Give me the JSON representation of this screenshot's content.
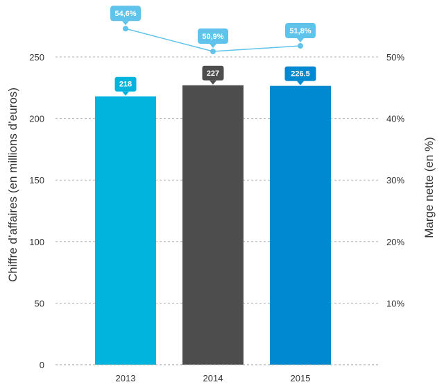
{
  "chart_data": {
    "type": "bar",
    "categories": [
      "2013",
      "2014",
      "2015"
    ],
    "series": [
      {
        "type": "bar",
        "axis": "left",
        "values": [
          218,
          227,
          226.5
        ],
        "labels": [
          "218",
          "227",
          "226.5"
        ],
        "colors": [
          "#00b4de",
          "#4d4d4d",
          "#0089d0"
        ]
      },
      {
        "type": "line",
        "axis": "right",
        "values": [
          54.6,
          50.9,
          51.8
        ],
        "labels": [
          "54,6%",
          "50,9%",
          "51,8%"
        ],
        "color": "#5fc3ec"
      }
    ],
    "ylabel": "Chiffre d’affaires (en millions d’euros)",
    "y2label": "Marge nette  (en %)",
    "ylim": [
      0,
      250
    ],
    "y2lim": [
      0,
      50
    ],
    "yticks": [
      "0",
      "50",
      "100",
      "150",
      "200",
      "250"
    ],
    "y2ticks": [
      "10%",
      "20%",
      "30%",
      "40%",
      "50%"
    ],
    "grid": true
  }
}
